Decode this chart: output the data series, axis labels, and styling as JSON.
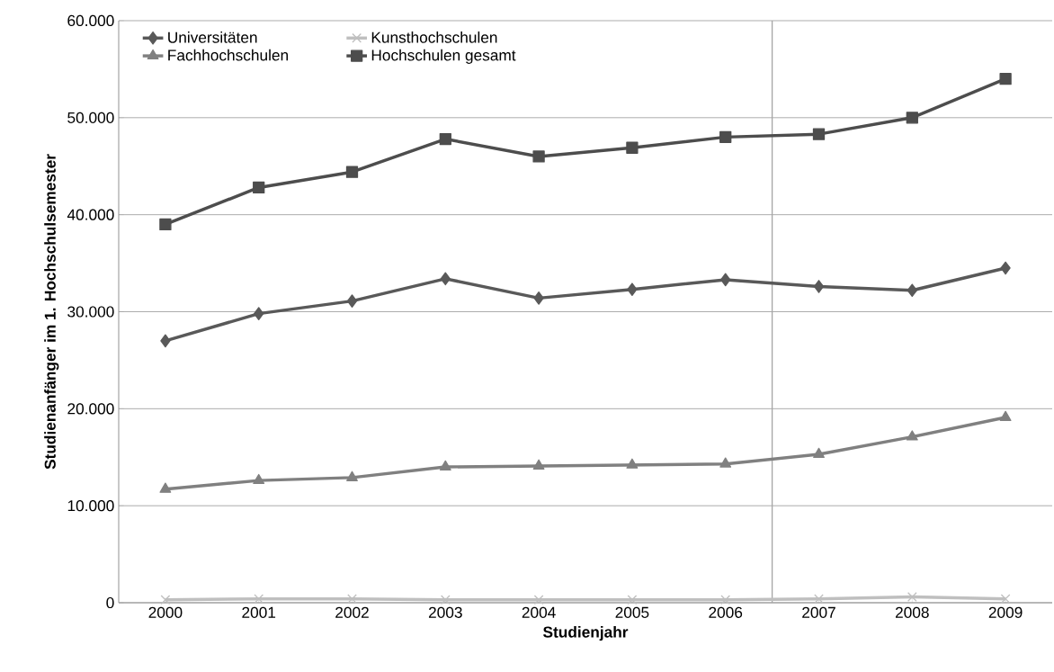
{
  "chart_data": {
    "type": "line",
    "xlabel": "Studienjahr",
    "ylabel": "Studienanfänger im 1. Hochschulsemester",
    "categories": [
      "2000",
      "2001",
      "2002",
      "2003",
      "2004",
      "2005",
      "2006",
      "2007",
      "2008",
      "2009"
    ],
    "series": [
      {
        "name": "Universitäten",
        "color": "#595959",
        "marker": "diamond",
        "values": [
          27000,
          29800,
          31100,
          33400,
          31400,
          32300,
          33300,
          32600,
          32200,
          34500
        ]
      },
      {
        "name": "Kunsthochschulen",
        "color": "#bfbfbf",
        "marker": "cross",
        "values": [
          300,
          400,
          400,
          300,
          300,
          300,
          300,
          400,
          600,
          400
        ]
      },
      {
        "name": "Fachhochschulen",
        "color": "#808080",
        "marker": "triangle",
        "values": [
          11700,
          12600,
          12900,
          14000,
          14100,
          14200,
          14300,
          15300,
          17100,
          19100
        ]
      },
      {
        "name": "Hochschulen gesamt",
        "color": "#4d4d4d",
        "marker": "square",
        "values": [
          39000,
          42800,
          44400,
          47800,
          46000,
          46900,
          48000,
          48300,
          50000,
          54000
        ]
      }
    ],
    "ylim": [
      0,
      60000
    ],
    "yticks": [
      0,
      {
        "value": 10000,
        "label": "10.000"
      },
      {
        "value": 20000,
        "label": "20.000"
      },
      {
        "value": 30000,
        "label": "30.000"
      },
      {
        "value": 40000,
        "label": "40.000"
      },
      {
        "value": 50000,
        "label": "50.000"
      },
      {
        "value": 60000,
        "label": "60.000"
      }
    ],
    "ref_lines": [
      {
        "axis": "x",
        "value": "2007",
        "color": "#a6a6a6"
      }
    ],
    "grid": "y",
    "legend": "top left",
    "line_style": "solid"
  }
}
